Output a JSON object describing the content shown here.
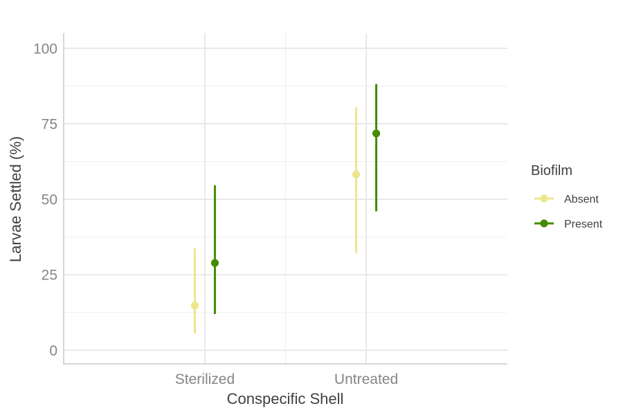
{
  "chart_data": {
    "type": "pointrange",
    "title": "",
    "xlabel": "Conspecific Shell",
    "ylabel": "Larvae Settled (%)",
    "ylim": [
      -4.5,
      105
    ],
    "yticks": [
      0,
      25,
      50,
      75,
      100
    ],
    "yticks_labels": [
      "0",
      "25",
      "50",
      "75",
      "100"
    ],
    "grid": true,
    "categories": [
      "Sterilized",
      "Untreated"
    ],
    "legend": {
      "title": "Biofilm",
      "position": "right"
    },
    "series": [
      {
        "name": "Absent",
        "color": "#EEE68C",
        "values": [
          14.8,
          58.2
        ],
        "lower": [
          5.5,
          32.2
        ],
        "upper": [
          33.8,
          80.5
        ]
      },
      {
        "name": "Present",
        "color": "#458B00",
        "values": [
          28.9,
          71.8
        ],
        "lower": [
          12.0,
          46.0
        ],
        "upper": [
          54.6,
          88.2
        ]
      }
    ]
  }
}
